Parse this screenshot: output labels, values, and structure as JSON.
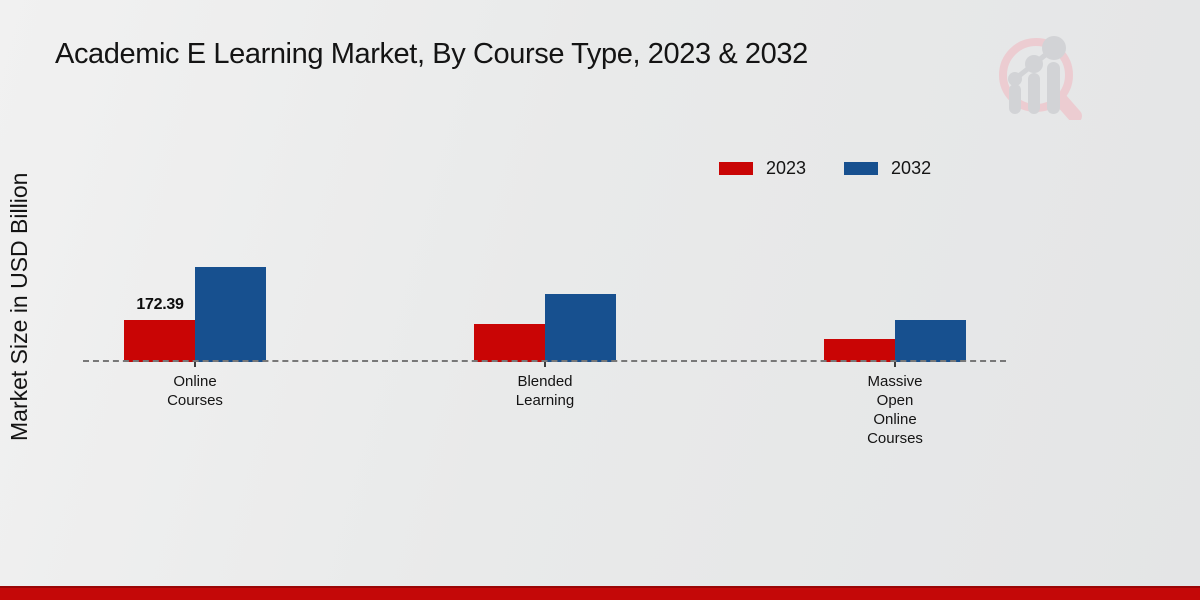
{
  "page": {
    "title": "Academic E Learning Market, By Course Type, 2023 & 2032",
    "ylabel": "Market Size in USD Billion"
  },
  "colors": {
    "red": "#c90505",
    "blue": "#17508f",
    "dashed_line": "#787878",
    "footer_red": "#c40808",
    "footer_red_dark": "#9a0606",
    "logo_pink": "#ecccd1",
    "logo_gray": "#d2d3d6",
    "text": "#141414"
  },
  "legend": {
    "items": [
      {
        "label": "2023",
        "color_key": "red"
      },
      {
        "label": "2032",
        "color_key": "blue"
      }
    ]
  },
  "chart_data": {
    "type": "bar",
    "title": "Academic E Learning Market, By Course Type, 2023 & 2032",
    "xlabel": "",
    "ylabel": "Market Size in USD Billion",
    "categories": [
      "Online Courses",
      "Blended Learning",
      "Massive Open Online Courses"
    ],
    "category_label_lines": [
      [
        "Online",
        "Courses"
      ],
      [
        "Blended",
        "Learning"
      ],
      [
        "Massive",
        "Open",
        "Online",
        "Courses"
      ]
    ],
    "series": [
      {
        "name": "2023",
        "color": "#c90505",
        "values": [
          172.39,
          155,
          95
        ]
      },
      {
        "name": "2032",
        "color": "#17508f",
        "values": [
          390,
          280,
          172
        ]
      }
    ],
    "annotations": [
      {
        "text": "172.39",
        "category_index": 0,
        "series_index": 0
      }
    ],
    "ylim": [
      0,
      450
    ],
    "grid": false,
    "legend_position": "upper-right",
    "baseline_style": "dashed"
  }
}
